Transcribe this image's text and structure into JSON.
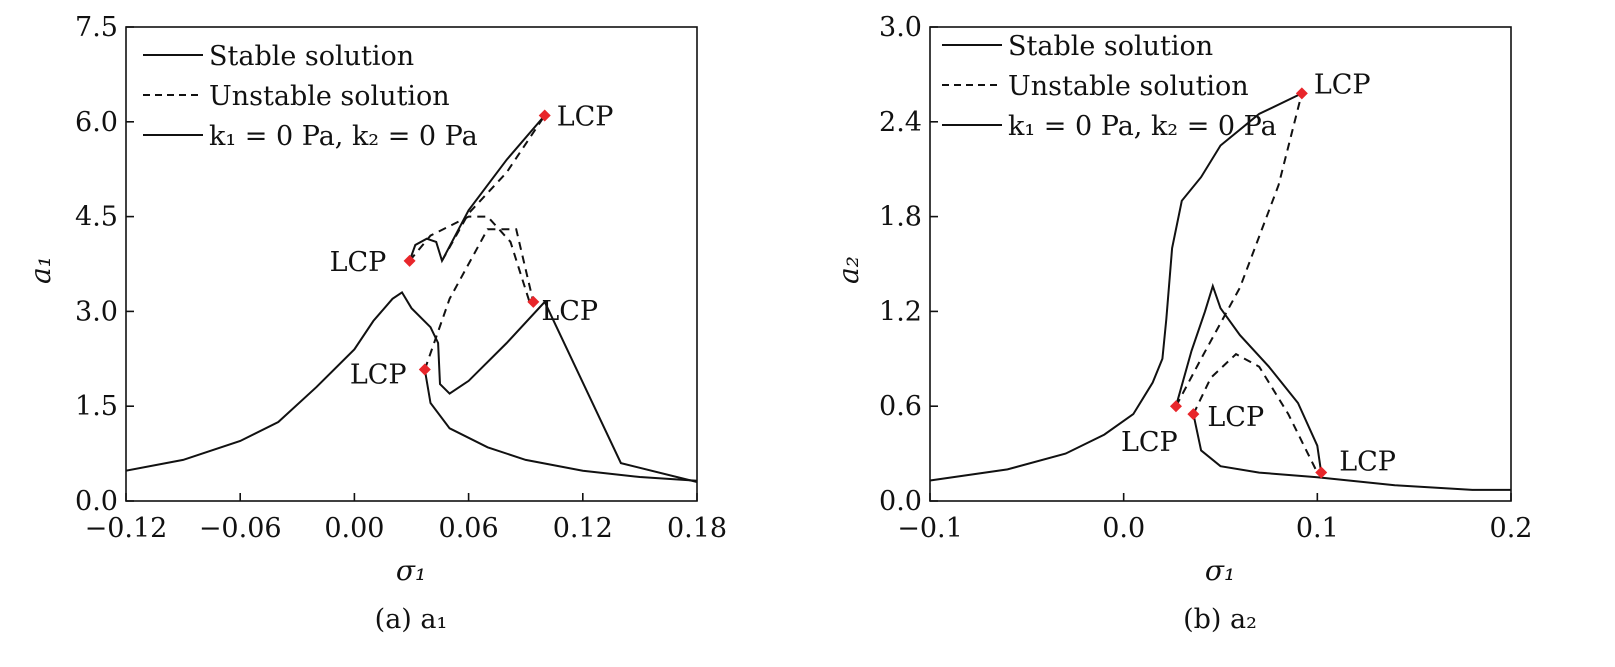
{
  "chart_data": [
    {
      "type": "line",
      "panel_caption": "(a) a₁",
      "xlabel": "σ₁",
      "ylabel": "a₁",
      "xlim": [
        -0.12,
        0.18
      ],
      "ylim": [
        0.0,
        7.5
      ],
      "xticks": [
        "−0.12",
        "−0.06",
        "0.00",
        "0.06",
        "0.12",
        "0.18"
      ],
      "xtick_values": [
        -0.12,
        -0.06,
        0.0,
        0.06,
        0.12,
        0.18
      ],
      "yticks": [
        "0.0",
        "1.5",
        "3.0",
        "4.5",
        "6.0",
        "7.5"
      ],
      "ytick_values": [
        0.0,
        1.5,
        3.0,
        4.5,
        6.0,
        7.5
      ],
      "grid": false,
      "legend_position": "top-left",
      "legend": [
        {
          "label": "Stable solution",
          "style": "solid"
        },
        {
          "label": "Unstable solution",
          "style": "dashed"
        },
        {
          "label": "k₁ = 0 Pa, k₂ = 0 Pa",
          "style": "solid"
        }
      ],
      "series": [
        {
          "style": "solid",
          "x": [
            -0.12,
            -0.09,
            -0.06,
            -0.04,
            -0.02,
            0.0,
            0.01,
            0.02,
            0.025,
            0.03,
            0.04,
            0.044,
            0.045,
            0.05,
            0.06,
            0.08,
            0.1,
            0.14,
            0.18
          ],
          "y": [
            0.48,
            0.65,
            0.95,
            1.25,
            1.8,
            2.4,
            2.85,
            3.2,
            3.3,
            3.05,
            2.75,
            2.5,
            1.85,
            1.7,
            1.9,
            2.5,
            3.15,
            0.6,
            0.3
          ]
        },
        {
          "style": "solid",
          "x": [
            0.037,
            0.04,
            0.05,
            0.07,
            0.09,
            0.12,
            0.15,
            0.18
          ],
          "y": [
            2.08,
            1.55,
            1.15,
            0.85,
            0.65,
            0.48,
            0.38,
            0.32
          ]
        },
        {
          "style": "dashed",
          "x": [
            0.037,
            0.05,
            0.07,
            0.085,
            0.094
          ],
          "y": [
            2.08,
            3.2,
            4.3,
            4.3,
            3.15
          ]
        },
        {
          "style": "solid",
          "x": [
            0.029,
            0.032,
            0.038,
            0.043,
            0.046,
            0.06,
            0.08,
            0.1
          ],
          "y": [
            3.8,
            4.05,
            4.15,
            4.1,
            3.8,
            4.6,
            5.4,
            6.1
          ]
        },
        {
          "style": "dashed",
          "x": [
            0.029,
            0.04,
            0.06,
            0.07,
            0.082,
            0.092
          ],
          "y": [
            3.8,
            4.2,
            4.5,
            4.5,
            4.1,
            3.15
          ]
        },
        {
          "style": "dashed",
          "x": [
            0.046,
            0.06,
            0.08,
            0.1
          ],
          "y": [
            3.8,
            4.55,
            5.2,
            6.1
          ]
        }
      ],
      "lcp_points": [
        {
          "label": "LCP",
          "x": 0.1,
          "y": 6.1
        },
        {
          "label": "LCP",
          "x": 0.029,
          "y": 3.8
        },
        {
          "label": "LCP",
          "x": 0.094,
          "y": 3.15
        },
        {
          "label": "LCP",
          "x": 0.037,
          "y": 2.08
        }
      ]
    },
    {
      "type": "line",
      "panel_caption": "(b) a₂",
      "xlabel": "σ₁",
      "ylabel": "a₂",
      "xlim": [
        -0.1,
        0.2
      ],
      "ylim": [
        0.0,
        3.0
      ],
      "xticks": [
        "−0.1",
        "0.0",
        "0.1",
        "0.2"
      ],
      "xtick_values": [
        -0.1,
        0.0,
        0.1,
        0.2
      ],
      "yticks": [
        "0.0",
        "0.6",
        "1.2",
        "1.8",
        "2.4",
        "3.0"
      ],
      "ytick_values": [
        0.0,
        0.6,
        1.2,
        1.8,
        2.4,
        3.0
      ],
      "grid": false,
      "legend_position": "top-left",
      "legend": [
        {
          "label": "Stable solution",
          "style": "solid"
        },
        {
          "label": "Unstable solution",
          "style": "dashed"
        },
        {
          "label": "k₁ = 0 Pa, k₂ = 0 Pa",
          "style": "solid"
        }
      ],
      "series": [
        {
          "style": "solid",
          "x": [
            -0.1,
            -0.06,
            -0.03,
            -0.01,
            0.005,
            0.015,
            0.02,
            0.022,
            0.025,
            0.03,
            0.04,
            0.05,
            0.07,
            0.092
          ],
          "y": [
            0.13,
            0.2,
            0.3,
            0.42,
            0.55,
            0.75,
            0.9,
            1.15,
            1.6,
            1.9,
            2.05,
            2.25,
            2.45,
            2.58
          ]
        },
        {
          "style": "dashed",
          "x": [
            0.027,
            0.04,
            0.06,
            0.08,
            0.092
          ],
          "y": [
            0.6,
            0.9,
            1.35,
            2.0,
            2.58
          ]
        },
        {
          "style": "solid",
          "x": [
            0.027,
            0.035,
            0.042,
            0.046,
            0.05,
            0.06,
            0.075,
            0.09,
            0.1,
            0.102
          ],
          "y": [
            0.6,
            0.95,
            1.2,
            1.36,
            1.22,
            1.05,
            0.85,
            0.62,
            0.35,
            0.18
          ]
        },
        {
          "style": "dashed",
          "x": [
            0.036,
            0.045,
            0.058,
            0.07,
            0.085,
            0.1
          ],
          "y": [
            0.55,
            0.78,
            0.93,
            0.85,
            0.55,
            0.18
          ]
        },
        {
          "style": "solid",
          "x": [
            0.036,
            0.04,
            0.05,
            0.07,
            0.1,
            0.14,
            0.18,
            0.2
          ],
          "y": [
            0.55,
            0.32,
            0.22,
            0.18,
            0.15,
            0.1,
            0.07,
            0.07
          ]
        }
      ],
      "lcp_points": [
        {
          "label": "LCP",
          "x": 0.092,
          "y": 2.58
        },
        {
          "label": "LCP",
          "x": 0.027,
          "y": 0.6
        },
        {
          "label": "LCP",
          "x": 0.036,
          "y": 0.55
        },
        {
          "label": "LCP",
          "x": 0.102,
          "y": 0.18
        }
      ]
    }
  ]
}
